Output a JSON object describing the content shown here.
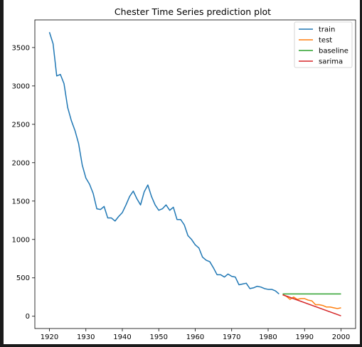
{
  "chart_data": {
    "type": "line",
    "title": "Chester Time Series prediction plot",
    "xlabel": "",
    "ylabel": "",
    "xlim": [
      1916,
      2004
    ],
    "ylim": [
      -160,
      3860
    ],
    "x_ticks": [
      1920,
      1930,
      1940,
      1950,
      1960,
      1970,
      1980,
      1990,
      2000
    ],
    "y_ticks": [
      0,
      500,
      1000,
      1500,
      2000,
      2500,
      3000,
      3500
    ],
    "grid": false,
    "legend_position": "top-right",
    "series": [
      {
        "name": "train",
        "color": "#1f77b4",
        "x": [
          1920,
          1921,
          1922,
          1923,
          1924,
          1925,
          1926,
          1927,
          1928,
          1929,
          1930,
          1931,
          1932,
          1933,
          1934,
          1935,
          1936,
          1937,
          1938,
          1939,
          1940,
          1941,
          1942,
          1943,
          1944,
          1945,
          1946,
          1947,
          1948,
          1949,
          1950,
          1951,
          1952,
          1953,
          1954,
          1955,
          1956,
          1957,
          1958,
          1959,
          1960,
          1961,
          1962,
          1963,
          1964,
          1965,
          1966,
          1967,
          1968,
          1969,
          1970,
          1971,
          1972,
          1973,
          1974,
          1975,
          1976,
          1977,
          1978,
          1979,
          1980,
          1981,
          1982,
          1983
        ],
        "y": [
          3700,
          3550,
          3130,
          3150,
          3030,
          2720,
          2550,
          2420,
          2250,
          1970,
          1800,
          1720,
          1600,
          1400,
          1390,
          1430,
          1280,
          1280,
          1240,
          1300,
          1350,
          1450,
          1560,
          1630,
          1530,
          1450,
          1620,
          1710,
          1560,
          1450,
          1380,
          1400,
          1450,
          1380,
          1420,
          1260,
          1260,
          1190,
          1050,
          1000,
          930,
          890,
          770,
          730,
          710,
          630,
          540,
          540,
          510,
          550,
          520,
          510,
          410,
          420,
          430,
          360,
          370,
          390,
          380,
          360,
          350,
          350,
          330,
          290
        ]
      },
      {
        "name": "test",
        "color": "#ff7f0e",
        "x": [
          1984,
          1985,
          1986,
          1987,
          1988,
          1989,
          1990,
          1991,
          1992,
          1993,
          1994,
          1995,
          1996,
          1997,
          1998,
          1999,
          2000
        ],
        "y": [
          280,
          260,
          220,
          250,
          220,
          230,
          230,
          210,
          200,
          150,
          150,
          140,
          120,
          120,
          110,
          100,
          110
        ]
      },
      {
        "name": "baseline",
        "color": "#2ca02c",
        "x": [
          1984,
          2000
        ],
        "y": [
          290,
          290
        ]
      },
      {
        "name": "sarima",
        "color": "#d62728",
        "x": [
          1984,
          2000
        ],
        "y": [
          280,
          5
        ]
      }
    ]
  }
}
